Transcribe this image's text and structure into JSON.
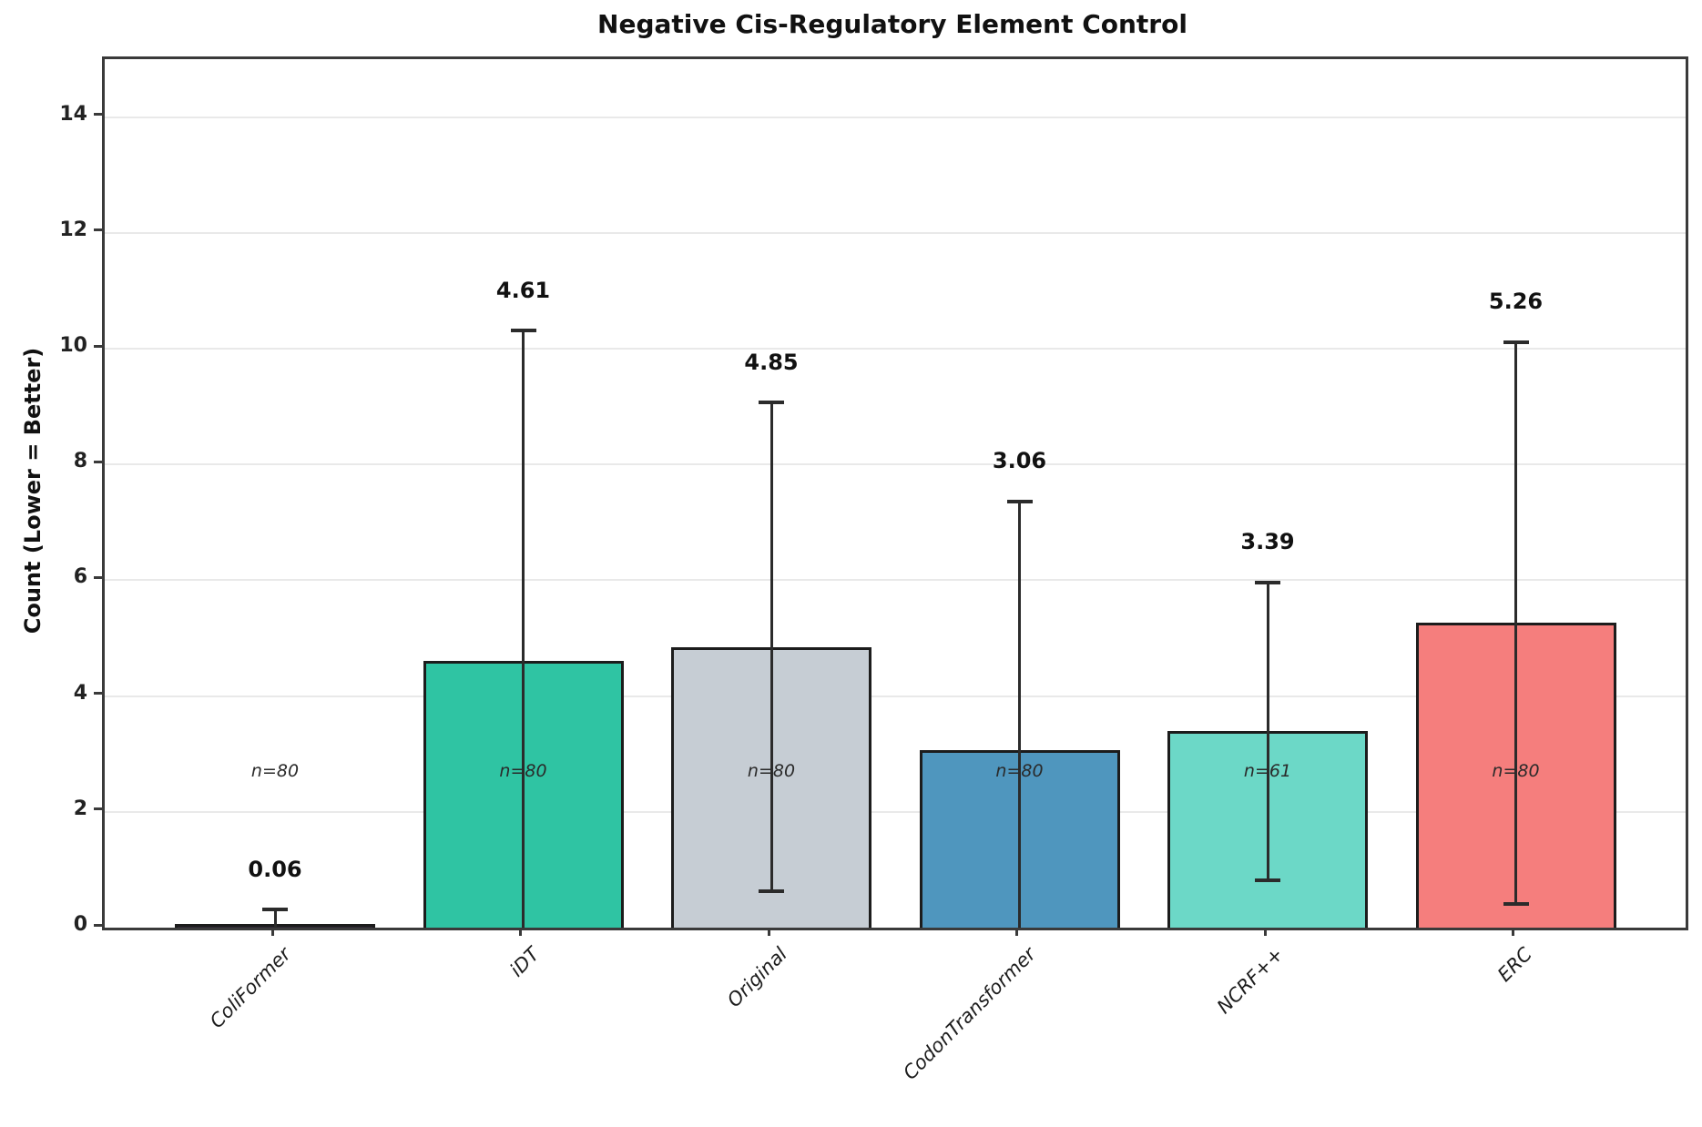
{
  "chart_data": {
    "type": "bar",
    "title": "Negative Cis-Regulatory Element Control",
    "xlabel": "",
    "ylabel": "Count (Lower = Better)",
    "ylim": [
      0,
      15
    ],
    "yticks": [
      0,
      2,
      4,
      6,
      8,
      10,
      12,
      14
    ],
    "ytick_labels": [
      "0",
      "2",
      "4",
      "6",
      "8",
      "10",
      "12",
      "14"
    ],
    "grid": "horizontal",
    "grid_color": "#e9e9e9",
    "error_bar_color": "#2b2b2b",
    "bar_edge_color": "#1c1c1c",
    "categories": [
      "ColiFormer",
      "iDT",
      "Original",
      "CodonTransformer",
      "NCRF++",
      "ERC"
    ],
    "series": [
      {
        "name": "Count",
        "values": [
          0.06,
          4.61,
          4.85,
          3.06,
          3.39,
          5.26
        ]
      }
    ],
    "bars": [
      {
        "category": "ColiFormer",
        "value": 0.06,
        "value_label": "0.06",
        "n_label": "n=80",
        "color": "#2E2633",
        "err_top": 0.31,
        "err_bottom": 0.0,
        "bottom_cap": false
      },
      {
        "category": "iDT",
        "value": 4.61,
        "value_label": "4.61",
        "n_label": "n=80",
        "color": "#2FC4A3",
        "err_top": 10.31,
        "err_bottom": 0.0,
        "bottom_cap": false
      },
      {
        "category": "Original",
        "value": 4.85,
        "value_label": "4.85",
        "n_label": "n=80",
        "color": "#C6CDD4",
        "err_top": 9.07,
        "err_bottom": 0.63,
        "bottom_cap": true
      },
      {
        "category": "CodonTransformer",
        "value": 3.06,
        "value_label": "3.06",
        "n_label": "n=80",
        "color": "#4F96BE",
        "err_top": 7.36,
        "err_bottom": 0.0,
        "bottom_cap": false
      },
      {
        "category": "NCRF++",
        "value": 3.39,
        "value_label": "3.39",
        "n_label": "n=61",
        "color": "#6CD8C7",
        "err_top": 5.96,
        "err_bottom": 0.82,
        "bottom_cap": true
      },
      {
        "category": "ERC",
        "value": 5.26,
        "value_label": "5.26",
        "n_label": "n=80",
        "color": "#F57E7D",
        "err_top": 10.11,
        "err_bottom": 0.41,
        "bottom_cap": true
      }
    ],
    "n_label_height": 2.71,
    "value_label_offset": 0.7
  }
}
